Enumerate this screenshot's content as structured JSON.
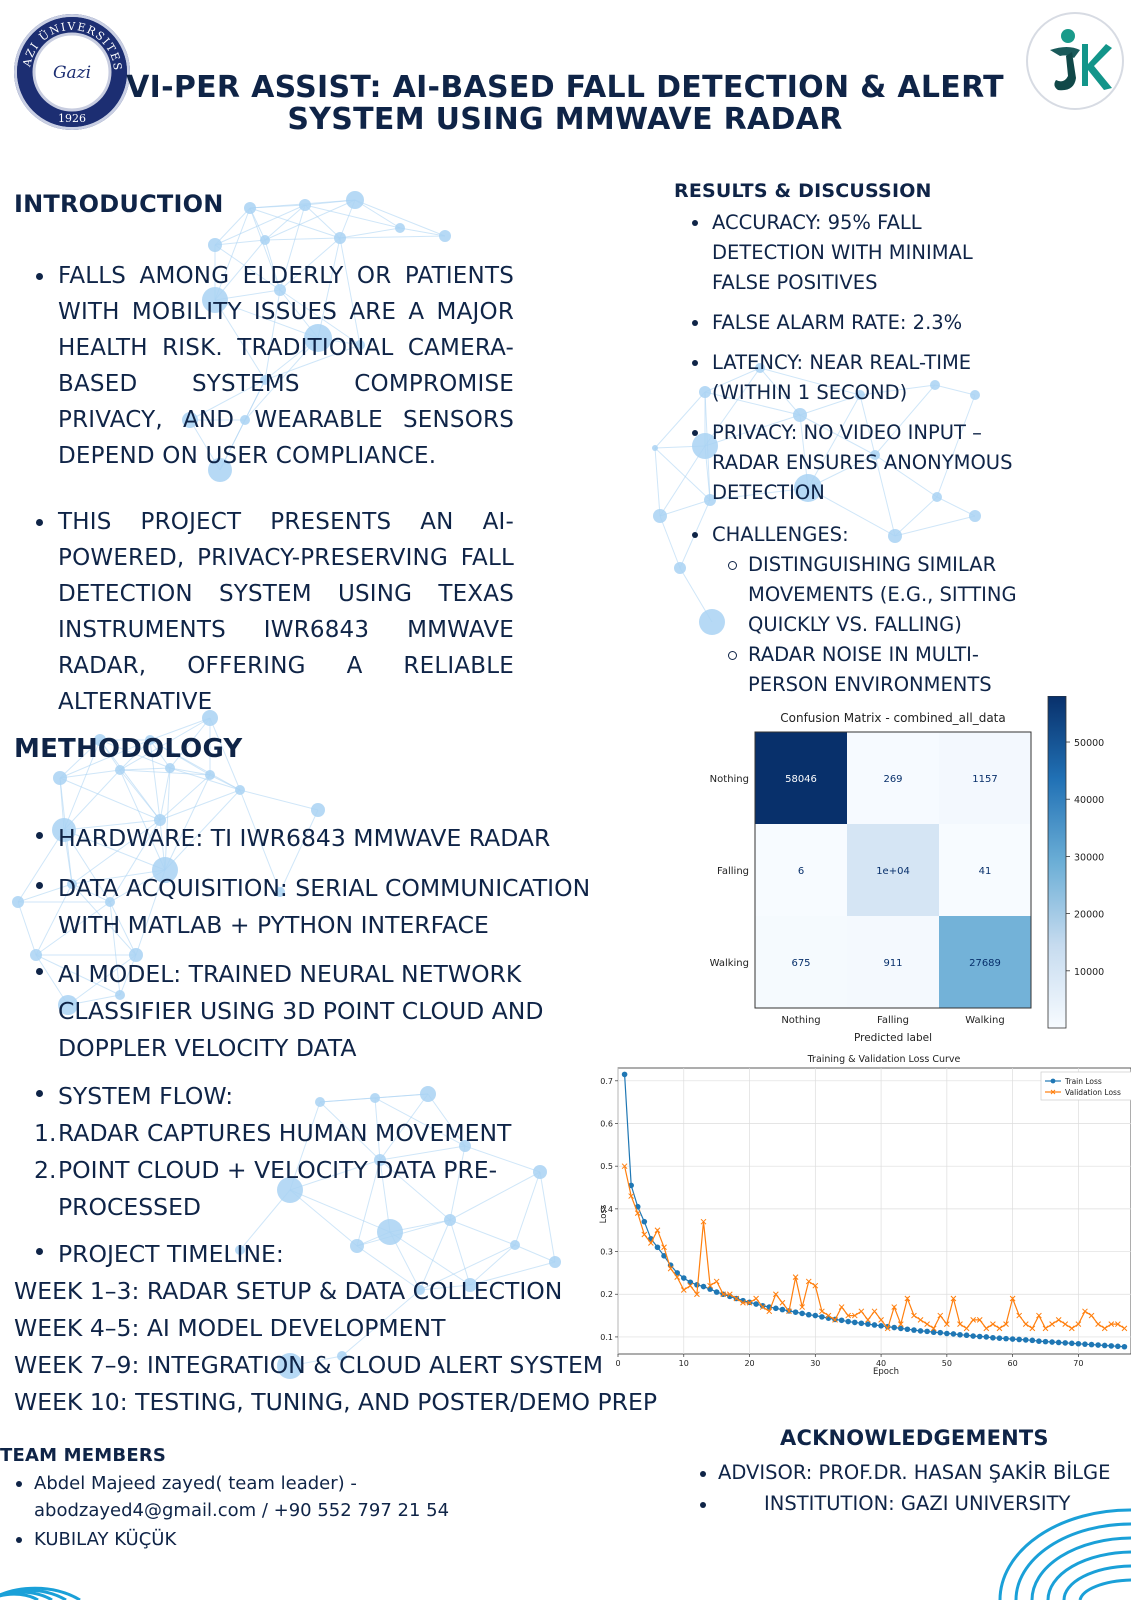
{
  "header": {
    "title_line1": "VI-PER ASSIST: AI-BASED FALL DETECTION & ALERT",
    "title_line2": "SYSTEM USING MMWAVE RADAR",
    "left_logo": {
      "icon": "gazi-university-seal",
      "text": "GAZI ÜNIVERSITESI",
      "year": "1926",
      "signature": "Gazi"
    },
    "right_logo": {
      "icon": "jk-figure-logo"
    }
  },
  "introduction": {
    "heading": "INTRODUCTION",
    "bullets": [
      "FALLS AMONG ELDERLY OR PATIENTS WITH MOBILITY ISSUES ARE A MAJOR HEALTH RISK. TRADITIONAL CAMERA-BASED SYSTEMS COMPROMISE PRIVACY, AND WEARABLE SENSORS DEPEND ON USER COMPLIANCE.",
      "THIS PROJECT PRESENTS AN AI-POWERED, PRIVACY-PRESERVING FALL DETECTION SYSTEM USING TEXAS INSTRUMENTS IWR6843 MMWAVE RADAR, OFFERING A RELIABLE ALTERNATIVE"
    ]
  },
  "methodology": {
    "heading": "METHODOLOGY",
    "bullets": [
      "HARDWARE: TI IWR6843 MMWAVE RADAR",
      "DATA ACQUISITION: SERIAL COMMUNICATION WITH MATLAB + PYTHON INTERFACE",
      "AI MODEL: TRAINED NEURAL NETWORK CLASSIFIER USING 3D POINT CLOUD AND DOPPLER VELOCITY DATA",
      "SYSTEM FLOW:"
    ],
    "flow": [
      {
        "num": "1.",
        "text": "RADAR CAPTURES HUMAN MOVEMENT"
      },
      {
        "num": "2.",
        "text": "POINT CLOUD + VELOCITY DATA PRE-PROCESSED"
      }
    ],
    "timeline_label": "PROJECT TIMELINE:",
    "timeline": [
      "WEEK 1–3: RADAR SETUP & DATA COLLECTION",
      "WEEK 4–5: AI MODEL DEVELOPMENT",
      "WEEK 7–9: INTEGRATION & CLOUD ALERT SYSTEM",
      "WEEK 10: TESTING, TUNING, AND POSTER/DEMO PREP"
    ]
  },
  "team": {
    "heading": "TEAM MEMBERS",
    "members": [
      "Abdel Majeed zayed( team leader) - abodzayed4@gmail.com / +90 552 797 21 54",
      "KUBILAY KÜÇÜK"
    ]
  },
  "results": {
    "heading": "RESULTS & DISCUSSION",
    "bullets": [
      "ACCURACY: 95% FALL DETECTION WITH MINIMAL FALSE POSITIVES",
      "FALSE ALARM RATE: 2.3%",
      "LATENCY: NEAR REAL-TIME (WITHIN 1 SECOND)",
      "PRIVACY: NO VIDEO INPUT – RADAR ENSURES ANONYMOUS DETECTION",
      "CHALLENGES:"
    ],
    "sub_bullets": [
      "DISTINGUISHING SIMILAR MOVEMENTS (E.G., SITTING QUICKLY VS. FALLING)",
      "RADAR NOISE IN MULTI-PERSON ENVIRONMENTS"
    ]
  },
  "acknowledgements": {
    "heading": "ACKNOWLEDGEMENTS",
    "items": [
      "ADVISOR: PROF.DR. HASAN ŞAKİR BİLGE",
      "INSTITUTION: GAZI UNIVERSITY"
    ]
  },
  "colors": {
    "navy": "#0f2447",
    "bubble": "#a9d2f3",
    "train": "#1f77b4",
    "val": "#ff7f0e"
  },
  "chart_data": [
    {
      "type": "heatmap",
      "title": "Confusion Matrix - combined_all_data",
      "xlabel": "Predicted label",
      "ylabel": "",
      "rows": [
        "Nothing",
        "Falling",
        "Walking"
      ],
      "cols": [
        "Nothing",
        "Falling",
        "Walking"
      ],
      "cell_labels": [
        [
          "58046",
          "269",
          "1157"
        ],
        [
          "6",
          "1e+04",
          "41"
        ],
        [
          "675",
          "911",
          "27689"
        ]
      ],
      "values": [
        [
          58046,
          269,
          1157
        ],
        [
          6,
          10000,
          41
        ],
        [
          675,
          911,
          27689
        ]
      ],
      "colorbar_ticks": [
        "10000",
        "20000",
        "30000",
        "40000",
        "50000"
      ],
      "colorbar_range": [
        0,
        58046
      ],
      "colormap": "Blues"
    },
    {
      "type": "line",
      "title": "Training & Validation Loss Curve",
      "xlabel": "Epoch",
      "ylabel": "Loss",
      "xlim": [
        0,
        78
      ],
      "ylim": [
        0.06,
        0.73
      ],
      "x_ticks": [
        "0",
        "10",
        "20",
        "30",
        "40",
        "50",
        "60",
        "70"
      ],
      "y_ticks": [
        "0.1",
        "0.2",
        "0.3",
        "0.4",
        "0.5",
        "0.6",
        "0.7"
      ],
      "legend": "top-right",
      "grid": true,
      "series": [
        {
          "name": "Train Loss",
          "marker": "o",
          "values": [
            0.715,
            0.455,
            0.405,
            0.37,
            0.33,
            0.31,
            0.29,
            0.268,
            0.25,
            0.238,
            0.228,
            0.222,
            0.218,
            0.212,
            0.205,
            0.2,
            0.195,
            0.19,
            0.185,
            0.181,
            0.177,
            0.173,
            0.17,
            0.167,
            0.164,
            0.161,
            0.158,
            0.155,
            0.152,
            0.15,
            0.147,
            0.144,
            0.141,
            0.139,
            0.136,
            0.134,
            0.132,
            0.13,
            0.128,
            0.126,
            0.124,
            0.122,
            0.12,
            0.118,
            0.116,
            0.114,
            0.113,
            0.111,
            0.11,
            0.108,
            0.107,
            0.105,
            0.104,
            0.102,
            0.101,
            0.1,
            0.098,
            0.097,
            0.096,
            0.095,
            0.094,
            0.093,
            0.092,
            0.09,
            0.089,
            0.088,
            0.087,
            0.086,
            0.085,
            0.084,
            0.083,
            0.082,
            0.081,
            0.08,
            0.079,
            0.078,
            0.077
          ]
        },
        {
          "name": "Validation Loss",
          "marker": "x",
          "values": [
            0.5,
            0.43,
            0.39,
            0.34,
            0.32,
            0.35,
            0.31,
            0.26,
            0.24,
            0.21,
            0.22,
            0.2,
            0.37,
            0.22,
            0.23,
            0.2,
            0.2,
            0.19,
            0.18,
            0.18,
            0.19,
            0.17,
            0.16,
            0.2,
            0.18,
            0.16,
            0.24,
            0.17,
            0.23,
            0.22,
            0.16,
            0.15,
            0.14,
            0.17,
            0.15,
            0.15,
            0.16,
            0.14,
            0.16,
            0.14,
            0.12,
            0.17,
            0.13,
            0.19,
            0.15,
            0.14,
            0.13,
            0.12,
            0.15,
            0.13,
            0.19,
            0.13,
            0.12,
            0.14,
            0.14,
            0.12,
            0.13,
            0.12,
            0.13,
            0.19,
            0.15,
            0.13,
            0.12,
            0.15,
            0.12,
            0.13,
            0.14,
            0.13,
            0.12,
            0.13,
            0.16,
            0.15,
            0.13,
            0.12,
            0.13,
            0.13,
            0.12
          ]
        }
      ]
    }
  ]
}
